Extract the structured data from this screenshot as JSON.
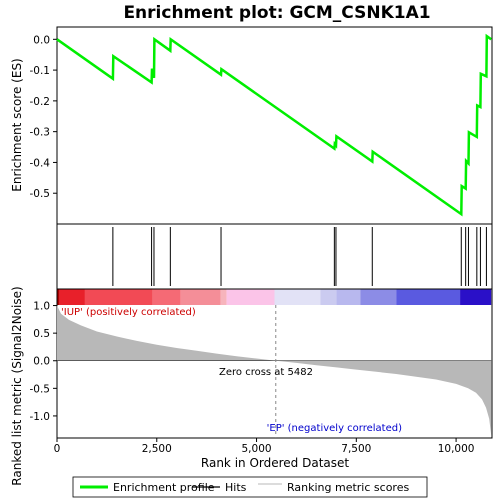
{
  "chart_data": {
    "type": "line",
    "title": "Enrichment plot: GCM_CSNK1A1",
    "x_label": "Rank in Ordered Dataset",
    "x_range": [
      0,
      10900
    ],
    "x_ticks": [
      0,
      2500,
      5000,
      7500,
      10000
    ],
    "x_tick_labels": [
      "0",
      "2,500",
      "5,000",
      "7,500",
      "10,000"
    ],
    "es_panel": {
      "y_label": "Enrichment score (ES)",
      "y_range": [
        -0.6,
        0.04
      ],
      "y_ticks": [
        0.0,
        -0.1,
        -0.2,
        -0.3,
        -0.4,
        -0.5
      ],
      "y_tick_labels": [
        "0.0",
        "-0.1",
        "-0.2",
        "-0.3",
        "-0.4",
        "-0.5"
      ],
      "series_color": "#00ee00",
      "points": [
        [
          0,
          0.0
        ],
        [
          1400,
          -0.128
        ],
        [
          1410,
          -0.055
        ],
        [
          2370,
          -0.14
        ],
        [
          2380,
          -0.095
        ],
        [
          2430,
          -0.125
        ],
        [
          2440,
          0.0
        ],
        [
          2840,
          -0.037
        ],
        [
          2850,
          0.0
        ],
        [
          4110,
          -0.115
        ],
        [
          4120,
          -0.097
        ],
        [
          6950,
          -0.355
        ],
        [
          6960,
          -0.34
        ],
        [
          6990,
          -0.345
        ],
        [
          7000,
          -0.315
        ],
        [
          7900,
          -0.397
        ],
        [
          7910,
          -0.365
        ],
        [
          10130,
          -0.568
        ],
        [
          10140,
          -0.477
        ],
        [
          10240,
          -0.485
        ],
        [
          10250,
          -0.395
        ],
        [
          10310,
          -0.403
        ],
        [
          10320,
          -0.302
        ],
        [
          10520,
          -0.317
        ],
        [
          10530,
          -0.215
        ],
        [
          10610,
          -0.22
        ],
        [
          10620,
          -0.112
        ],
        [
          10760,
          -0.12
        ],
        [
          10770,
          0.01
        ],
        [
          10880,
          0.0
        ]
      ]
    },
    "hits": [
      1400,
      2370,
      2430,
      2840,
      4110,
      6950,
      6990,
      7900,
      10130,
      10240,
      10310,
      10520,
      10610,
      10760
    ],
    "metric_panel": {
      "y_label": "Ranked list metric (Signal2Noise)",
      "y_range": [
        -1.4,
        1.3
      ],
      "y_ticks": [
        1.0,
        0.5,
        0.0,
        -0.5,
        -1.0
      ],
      "y_tick_labels": [
        "1.0",
        "0.5",
        "0.0",
        "-0.5",
        "-1.0"
      ],
      "fill_color": "#b8b8b8",
      "profile": [
        [
          0,
          1.0
        ],
        [
          100,
          0.85
        ],
        [
          300,
          0.74
        ],
        [
          600,
          0.64
        ],
        [
          1000,
          0.53
        ],
        [
          1500,
          0.44
        ],
        [
          2000,
          0.36
        ],
        [
          2500,
          0.29
        ],
        [
          3000,
          0.23
        ],
        [
          3500,
          0.18
        ],
        [
          4000,
          0.13
        ],
        [
          4500,
          0.08
        ],
        [
          5000,
          0.04
        ],
        [
          5482,
          0.0
        ],
        [
          6000,
          -0.04
        ],
        [
          6500,
          -0.08
        ],
        [
          7000,
          -0.12
        ],
        [
          7500,
          -0.16
        ],
        [
          8000,
          -0.2
        ],
        [
          8500,
          -0.24
        ],
        [
          9000,
          -0.29
        ],
        [
          9500,
          -0.34
        ],
        [
          10000,
          -0.42
        ],
        [
          10300,
          -0.5
        ],
        [
          10500,
          -0.58
        ],
        [
          10650,
          -0.7
        ],
        [
          10750,
          -0.85
        ],
        [
          10830,
          -1.05
        ],
        [
          10880,
          -1.35
        ],
        [
          10880,
          0
        ]
      ],
      "up_label": "'IUP' (positively correlated)",
      "up_label_color": "#cc0000",
      "down_label": "'EP' (negatively correlated)",
      "down_label_color": "#0000cc",
      "zero_cross_label": "Zero cross at 5482",
      "zero_cross": 5482
    },
    "colorbar": {
      "segments": [
        {
          "x0": 0,
          "x1": 60,
          "color": "#aa0000"
        },
        {
          "x0": 60,
          "x1": 700,
          "color": "#e8202a"
        },
        {
          "x0": 700,
          "x1": 2400,
          "color": "#f24a55"
        },
        {
          "x0": 2400,
          "x1": 3100,
          "color": "#f56a75"
        },
        {
          "x0": 3100,
          "x1": 4100,
          "color": "#f48e98"
        },
        {
          "x0": 4100,
          "x1": 4250,
          "color": "#f7b4bc"
        },
        {
          "x0": 4250,
          "x1": 5450,
          "color": "#fbc4e8"
        },
        {
          "x0": 5450,
          "x1": 6600,
          "color": "#e2e2f6"
        },
        {
          "x0": 6600,
          "x1": 7000,
          "color": "#cbcbf0"
        },
        {
          "x0": 7000,
          "x1": 7600,
          "color": "#b8b8ee"
        },
        {
          "x0": 7600,
          "x1": 8500,
          "color": "#8c8ce6"
        },
        {
          "x0": 8500,
          "x1": 10100,
          "color": "#5a5ae0"
        },
        {
          "x0": 10100,
          "x1": 10880,
          "color": "#2a10c8"
        }
      ]
    },
    "legend": {
      "position": "bottom",
      "items": [
        {
          "label": "Enrichment profile",
          "color": "#00ee00",
          "kind": "thick-line"
        },
        {
          "label": "Hits",
          "color": "#000000",
          "kind": "line"
        },
        {
          "label": "Ranking metric scores",
          "color": "#b8b8b8",
          "kind": "line"
        }
      ]
    }
  }
}
